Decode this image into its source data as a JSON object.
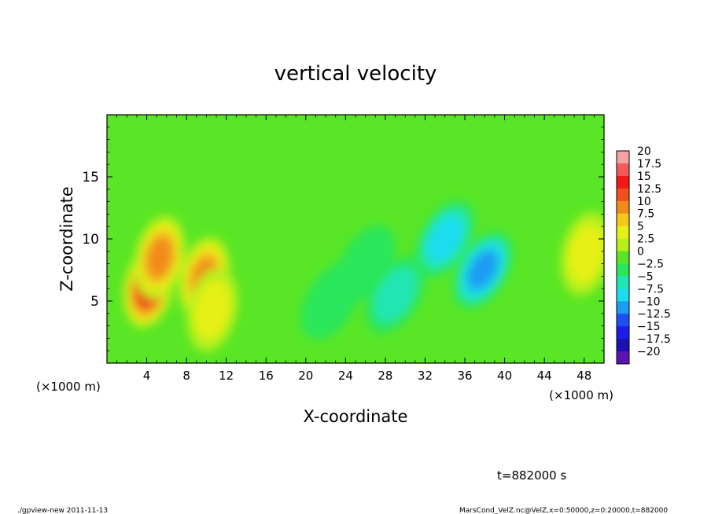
{
  "chart_data": {
    "type": "heatmap",
    "title": "vertical velocity",
    "xlabel": "X-coordinate",
    "ylabel": "Z-coordinate",
    "x_units_left": "(×1000 m)",
    "x_units_right": "(×1000 m)",
    "xlim": [
      0,
      50
    ],
    "ylim": [
      0,
      20
    ],
    "x_ticks": [
      4,
      8,
      12,
      16,
      20,
      24,
      28,
      32,
      36,
      40,
      44,
      48
    ],
    "y_ticks": [
      5,
      10,
      15
    ],
    "grid": false,
    "legend": "right",
    "colorbar": {
      "min": -20,
      "max": 20,
      "labels": [
        "20",
        "17.5",
        "15",
        "12.5",
        "10",
        "7.5",
        "5",
        "2.5",
        "0",
        "−2.5",
        "−5",
        "−7.5",
        "−10",
        "−12.5",
        "−15",
        "−17.5",
        "−20"
      ],
      "colors": [
        "#f7a3a3",
        "#f55a5a",
        "#f21818",
        "#f0501e",
        "#f28a1c",
        "#f4c81a",
        "#e6f018",
        "#b4f01c",
        "#5ae626",
        "#2ce65a",
        "#20e6b4",
        "#1cdcf0",
        "#1c9cf2",
        "#1c50f2",
        "#1c1ce6",
        "#1a10b4",
        "#5a14b4"
      ]
    },
    "features": [
      {
        "x": 4.2,
        "z": 6.2,
        "value": 14.5
      },
      {
        "x": 5.3,
        "z": 8.5,
        "value": 10
      },
      {
        "x": 9.8,
        "z": 6.8,
        "value": 9
      },
      {
        "x": 10.6,
        "z": 4.3,
        "value": 6
      },
      {
        "x": 48.2,
        "z": 8.8,
        "value": 6
      },
      {
        "x": 37.8,
        "z": 7.5,
        "value": -9
      },
      {
        "x": 34.0,
        "z": 10.0,
        "value": -7
      },
      {
        "x": 29.0,
        "z": 5.5,
        "value": -5
      },
      {
        "x": 26.0,
        "z": 8.0,
        "value": -3
      },
      {
        "x": 22.5,
        "z": 5.0,
        "value": -3
      }
    ]
  },
  "annotations": {
    "time": "t=882000 s",
    "program": "./gpview-new  2011-11-13",
    "source": "MarsCond_VelZ.nc@VelZ,x=0:50000,z=0:20000,t=882000"
  }
}
